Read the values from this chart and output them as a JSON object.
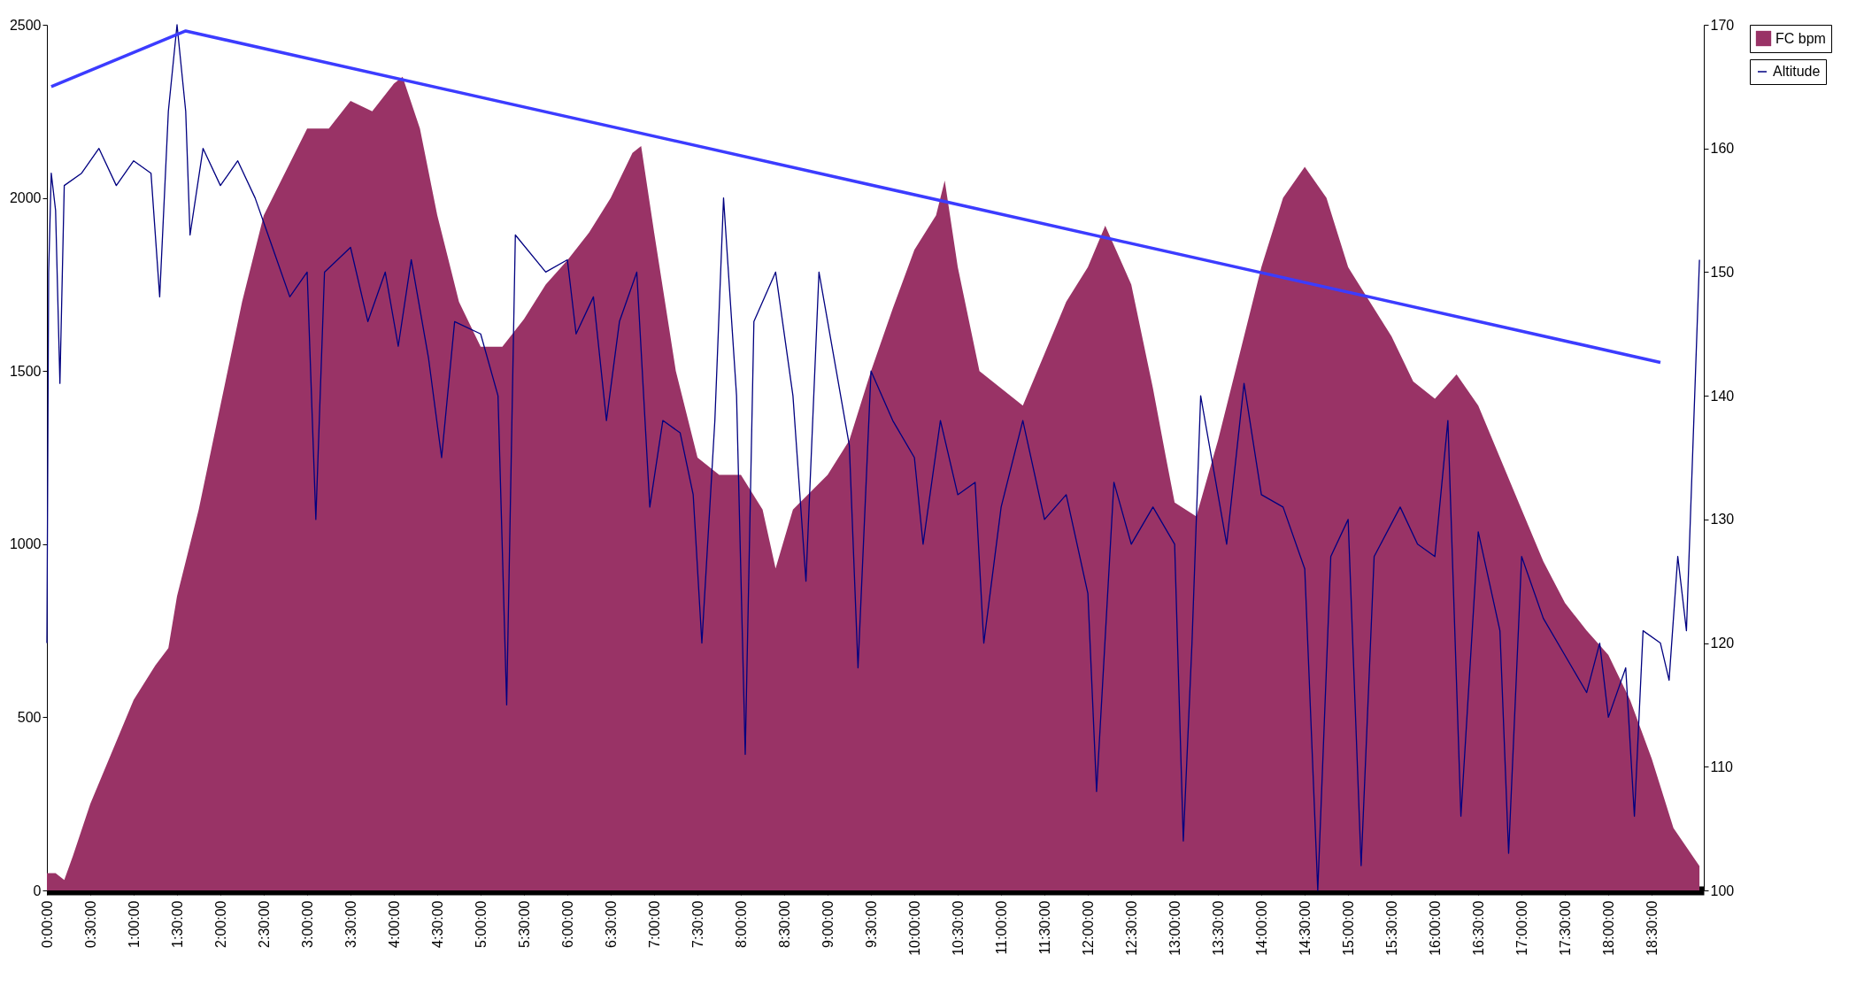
{
  "chart_data": {
    "type": "area",
    "xlim": [
      0,
      19.1
    ],
    "xticks": [
      {
        "value": 0,
        "label": "0:00:00"
      },
      {
        "value": 0.5,
        "label": "0:30:00"
      },
      {
        "value": 1,
        "label": "1:00:00"
      },
      {
        "value": 1.5,
        "label": "1:30:00"
      },
      {
        "value": 2,
        "label": "2:00:00"
      },
      {
        "value": 2.5,
        "label": "2:30:00"
      },
      {
        "value": 3,
        "label": "3:00:00"
      },
      {
        "value": 3.5,
        "label": "3:30:00"
      },
      {
        "value": 4,
        "label": "4:00:00"
      },
      {
        "value": 4.5,
        "label": "4:30:00"
      },
      {
        "value": 5,
        "label": "5:00:00"
      },
      {
        "value": 5.5,
        "label": "5:30:00"
      },
      {
        "value": 6,
        "label": "6:00:00"
      },
      {
        "value": 6.5,
        "label": "6:30:00"
      },
      {
        "value": 7,
        "label": "7:00:00"
      },
      {
        "value": 7.5,
        "label": "7:30:00"
      },
      {
        "value": 8,
        "label": "8:00:00"
      },
      {
        "value": 8.5,
        "label": "8:30:00"
      },
      {
        "value": 9,
        "label": "9:00:00"
      },
      {
        "value": 9.5,
        "label": "9:30:00"
      },
      {
        "value": 10,
        "label": "10:00:00"
      },
      {
        "value": 10.5,
        "label": "10:30:00"
      },
      {
        "value": 11,
        "label": "11:00:00"
      },
      {
        "value": 11.5,
        "label": "11:30:00"
      },
      {
        "value": 12,
        "label": "12:00:00"
      },
      {
        "value": 12.5,
        "label": "12:30:00"
      },
      {
        "value": 13,
        "label": "13:00:00"
      },
      {
        "value": 13.5,
        "label": "13:30:00"
      },
      {
        "value": 14,
        "label": "14:00:00"
      },
      {
        "value": 14.5,
        "label": "14:30:00"
      },
      {
        "value": 15,
        "label": "15:00:00"
      },
      {
        "value": 15.5,
        "label": "15:30:00"
      },
      {
        "value": 16,
        "label": "16:00:00"
      },
      {
        "value": 16.5,
        "label": "16:30:00"
      },
      {
        "value": 17,
        "label": "17:00:00"
      },
      {
        "value": 17.5,
        "label": "17:30:00"
      },
      {
        "value": 18,
        "label": "18:00:00"
      },
      {
        "value": 18.5,
        "label": "18:30:00"
      }
    ],
    "ylim": [
      0,
      2500
    ],
    "yticks": [
      0,
      500,
      1000,
      1500,
      2000,
      2500
    ],
    "y2lim": [
      100,
      170
    ],
    "y2ticks": [
      100,
      110,
      120,
      130,
      140,
      150,
      160,
      170
    ],
    "grid": false,
    "legend": "right",
    "series": [
      {
        "name": "FC bpm",
        "color": "#993366",
        "x": [
          0,
          0.1,
          0.2,
          0.3,
          0.5,
          0.75,
          1.0,
          1.25,
          1.4,
          1.5,
          1.75,
          2.0,
          2.25,
          2.5,
          2.7,
          3.0,
          3.25,
          3.5,
          3.75,
          4.0,
          4.1,
          4.3,
          4.5,
          4.75,
          5.0,
          5.25,
          5.5,
          5.75,
          6.0,
          6.25,
          6.5,
          6.75,
          6.85,
          7.0,
          7.25,
          7.5,
          7.75,
          8.0,
          8.25,
          8.4,
          8.6,
          9.0,
          9.25,
          9.5,
          9.75,
          10.0,
          10.25,
          10.35,
          10.5,
          10.75,
          11.0,
          11.25,
          11.5,
          11.75,
          12.0,
          12.2,
          12.5,
          12.75,
          12.9,
          13.0,
          13.25,
          13.5,
          13.75,
          14.0,
          14.25,
          14.5,
          14.75,
          15.0,
          15.25,
          15.5,
          15.75,
          16.0,
          16.25,
          16.5,
          16.75,
          17.0,
          17.25,
          17.5,
          17.75,
          18.0,
          18.25,
          18.5,
          18.75,
          19.05
        ],
        "values": [
          50,
          50,
          30,
          100,
          250,
          400,
          550,
          650,
          700,
          850,
          1100,
          1400,
          1700,
          1950,
          2050,
          2200,
          2200,
          2280,
          2250,
          2330,
          2350,
          2200,
          1950,
          1700,
          1570,
          1570,
          1650,
          1750,
          1820,
          1900,
          2000,
          2130,
          2150,
          1900,
          1500,
          1250,
          1200,
          1200,
          1100,
          930,
          1100,
          1200,
          1300,
          1500,
          1680,
          1850,
          1950,
          2050,
          1800,
          1500,
          1450,
          1400,
          1550,
          1700,
          1800,
          1920,
          1750,
          1450,
          1250,
          1120,
          1080,
          1300,
          1550,
          1800,
          2000,
          2090,
          2000,
          1800,
          1700,
          1600,
          1470,
          1420,
          1490,
          1400,
          1250,
          1100,
          950,
          830,
          750,
          680,
          550,
          380,
          180,
          70
        ]
      },
      {
        "name": "Altitude",
        "type": "line",
        "axis": "y2",
        "color": "#000080",
        "x": [
          0.0,
          0.02,
          0.05,
          0.1,
          0.15,
          0.2,
          0.4,
          0.6,
          0.8,
          1.0,
          1.2,
          1.3,
          1.4,
          1.5,
          1.6,
          1.65,
          1.8,
          2.0,
          2.2,
          2.4,
          2.6,
          2.8,
          3.0,
          3.1,
          3.2,
          3.5,
          3.7,
          3.9,
          4.05,
          4.2,
          4.4,
          4.55,
          4.7,
          5.0,
          5.2,
          5.3,
          5.4,
          5.75,
          6.0,
          6.1,
          6.3,
          6.45,
          6.6,
          6.8,
          6.95,
          7.1,
          7.3,
          7.45,
          7.55,
          7.7,
          7.8,
          7.95,
          8.05,
          8.15,
          8.4,
          8.6,
          8.75,
          8.9,
          9.1,
          9.25,
          9.35,
          9.5,
          9.75,
          10.0,
          10.1,
          10.3,
          10.5,
          10.7,
          10.8,
          11.0,
          11.25,
          11.5,
          11.75,
          12.0,
          12.1,
          12.3,
          12.5,
          12.75,
          13.0,
          13.1,
          13.2,
          13.3,
          13.6,
          13.8,
          14.0,
          14.25,
          14.5,
          14.65,
          14.8,
          15.0,
          15.15,
          15.3,
          15.6,
          15.8,
          16.0,
          16.15,
          16.3,
          16.5,
          16.75,
          16.85,
          17.0,
          17.25,
          17.5,
          17.75,
          17.9,
          18.0,
          18.2,
          18.3,
          18.4,
          18.6,
          18.7,
          18.8,
          18.9,
          19.05
        ],
        "values": [
          120,
          150,
          158,
          155,
          141,
          157,
          158,
          160,
          157,
          159,
          158,
          148,
          163,
          170,
          163,
          153,
          160,
          157,
          159,
          156,
          152,
          148,
          150,
          130,
          150,
          152,
          146,
          150,
          144,
          151,
          143,
          135,
          146,
          145,
          140,
          115,
          153,
          150,
          151,
          145,
          148,
          138,
          146,
          150,
          131,
          138,
          137,
          132,
          120,
          138,
          156,
          140,
          111,
          146,
          150,
          140,
          125,
          150,
          142,
          136,
          118,
          142,
          138,
          135,
          128,
          138,
          132,
          133,
          120,
          131,
          138,
          130,
          132,
          124,
          108,
          133,
          128,
          131,
          128,
          104,
          120,
          140,
          128,
          141,
          132,
          131,
          126,
          100,
          127,
          130,
          102,
          127,
          131,
          128,
          127,
          138,
          106,
          129,
          121,
          103,
          127,
          122,
          119,
          116,
          120,
          114,
          118,
          106,
          121,
          120,
          117,
          127,
          121,
          151
        ]
      },
      {
        "type": "line",
        "axis": "y2",
        "color": "#3c3cff",
        "x": [
          0.05,
          1.6,
          18.6
        ],
        "values": [
          165,
          169.5,
          142.7
        ]
      }
    ]
  }
}
